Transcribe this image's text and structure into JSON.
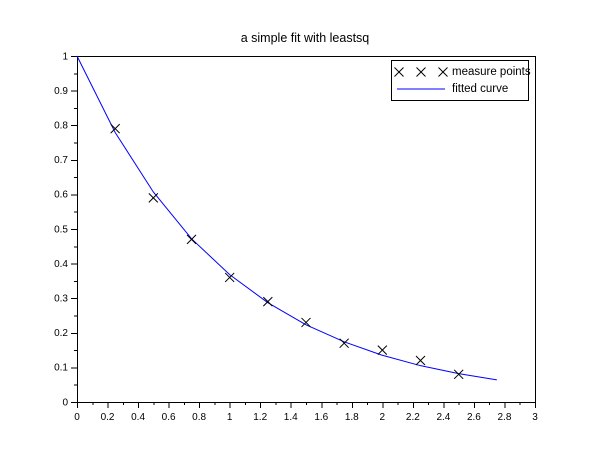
{
  "figure": {
    "background_color": "#ffffff",
    "axis_color": "#000000",
    "text_color": "#000000"
  },
  "chart_data": {
    "type": "line",
    "title": "a simple fit with leastsq",
    "xlabel": "",
    "ylabel": "",
    "xlim": [
      0,
      3
    ],
    "ylim": [
      0,
      1
    ],
    "grid": false,
    "legend_position": "top-right",
    "x_ticks": {
      "values": [
        0,
        0.2,
        0.4,
        0.6,
        0.8,
        1,
        1.2,
        1.4,
        1.6,
        1.8,
        2,
        2.2,
        2.4,
        2.6,
        2.8,
        3
      ],
      "labels": [
        "0",
        "0.2",
        "0.4",
        "0.6",
        "0.8",
        "1",
        "1.2",
        "1.4",
        "1.6",
        "1.8",
        "2",
        "2.2",
        "2.4",
        "2.6",
        "2.8",
        "3"
      ],
      "minor_step": 0.1
    },
    "y_ticks": {
      "values": [
        0,
        0.1,
        0.2,
        0.3,
        0.4,
        0.5,
        0.6,
        0.7,
        0.8,
        0.9,
        1
      ],
      "labels": [
        "0",
        "0.1",
        "0.2",
        "0.3",
        "0.4",
        "0.5",
        "0.6",
        "0.7",
        "0.8",
        "0.9",
        "1"
      ],
      "minor_step": 0.05
    },
    "series": [
      {
        "name": "measure points",
        "type": "scatter",
        "marker": "x",
        "color": "#000000",
        "x": [
          0.25,
          0.5,
          0.75,
          1,
          1.25,
          1.5,
          1.75,
          2,
          2.25,
          2.5
        ],
        "y": [
          0.79,
          0.59,
          0.47,
          0.36,
          0.29,
          0.23,
          0.17,
          0.15,
          0.12,
          0.08
        ]
      },
      {
        "name": "fitted curve",
        "type": "line",
        "color": "#0000ff",
        "x": [
          0,
          0.25,
          0.5,
          0.75,
          1,
          1.25,
          1.5,
          1.75,
          2,
          2.25,
          2.5,
          2.75
        ],
        "y": [
          1,
          0.779,
          0.607,
          0.472,
          0.368,
          0.287,
          0.223,
          0.174,
          0.135,
          0.105,
          0.082,
          0.064
        ]
      }
    ]
  }
}
